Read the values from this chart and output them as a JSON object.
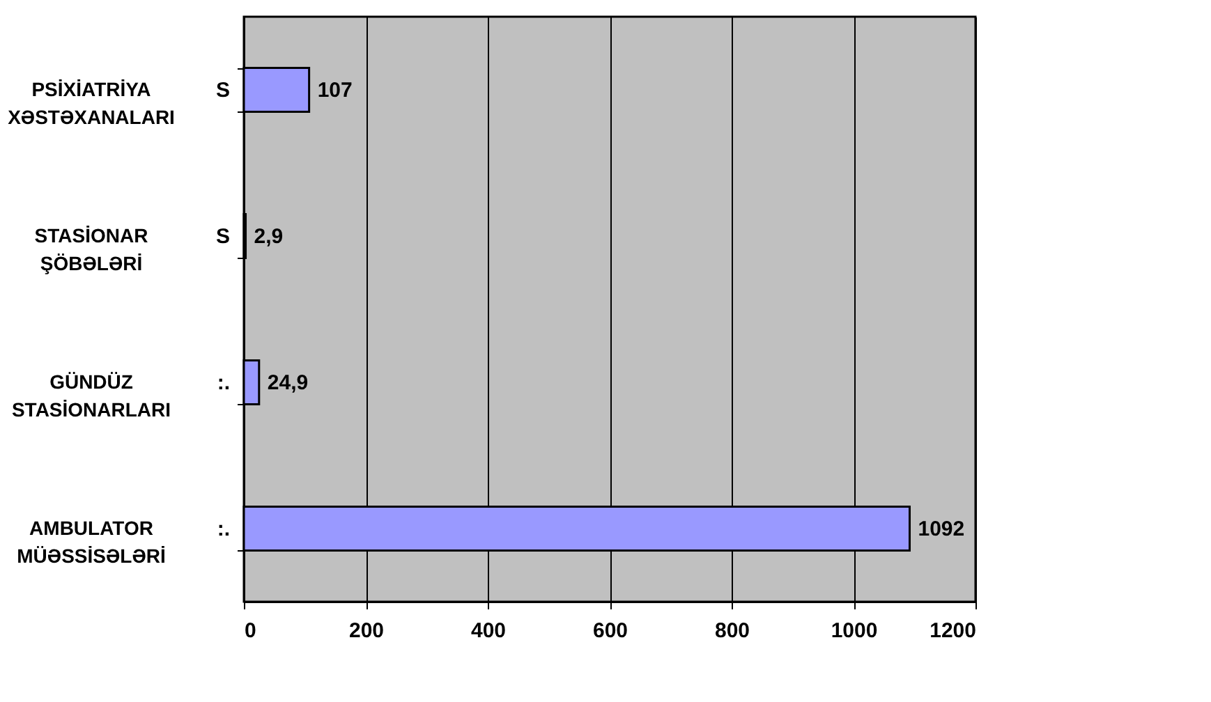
{
  "chart_data": {
    "type": "bar",
    "orientation": "horizontal",
    "categories": [
      "PSİXİATRİYA XƏSTƏXANALARI",
      "STASİONAR ŞÖBƏLƏRİ",
      "GÜNDÜZ STASİONARLARI",
      "AMBULATOR MÜƏSSİSƏLƏRİ"
    ],
    "values": [
      107,
      2.9,
      24.9,
      1092
    ],
    "value_labels": [
      "107",
      "2,9",
      "24,9",
      "1092"
    ],
    "color": "#9999ff",
    "xlim": [
      0,
      1200
    ],
    "xticks": [
      0,
      200,
      400,
      600,
      800,
      1000,
      1200
    ],
    "grid": "x",
    "annotations": [
      "S",
      "S",
      ":.",
      ":."
    ]
  }
}
